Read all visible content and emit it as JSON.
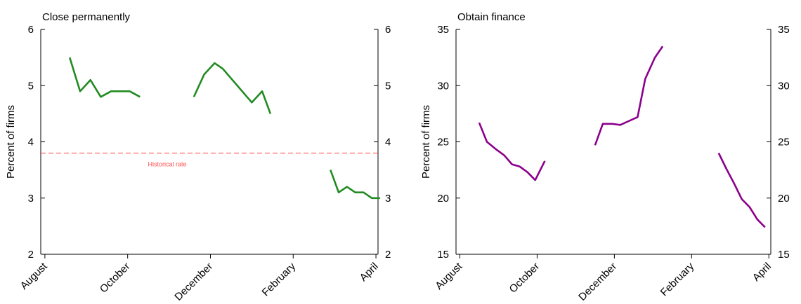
{
  "chart_data": [
    {
      "type": "line",
      "title": "Close permanently",
      "ylabel": "Percent of firms",
      "ylim": [
        2,
        6
      ],
      "yticks": [
        2,
        3,
        4,
        5,
        6
      ],
      "right_axis_mirrored": true,
      "x_range_months": [
        -0.1,
        8.05
      ],
      "x_ticks": [
        {
          "label": "August",
          "month": 0
        },
        {
          "label": "October",
          "month": 2
        },
        {
          "label": "December",
          "month": 4
        },
        {
          "label": "February",
          "month": 6
        },
        {
          "label": "April",
          "month": 8
        }
      ],
      "color": "#228B22",
      "segments": [
        [
          {
            "x": 0.6,
            "y": 5.5
          },
          {
            "x": 0.85,
            "y": 4.9
          },
          {
            "x": 1.1,
            "y": 5.1
          },
          {
            "x": 1.35,
            "y": 4.8
          },
          {
            "x": 1.6,
            "y": 4.9
          },
          {
            "x": 2.05,
            "y": 4.9
          },
          {
            "x": 2.3,
            "y": 4.8
          }
        ],
        [
          {
            "x": 3.6,
            "y": 4.8
          },
          {
            "x": 3.85,
            "y": 5.2
          },
          {
            "x": 4.1,
            "y": 5.4
          },
          {
            "x": 4.3,
            "y": 5.3
          },
          {
            "x": 5.0,
            "y": 4.7
          },
          {
            "x": 5.25,
            "y": 4.9
          },
          {
            "x": 5.45,
            "y": 4.5
          }
        ],
        [
          {
            "x": 6.9,
            "y": 3.5
          },
          {
            "x": 7.1,
            "y": 3.1
          },
          {
            "x": 7.3,
            "y": 3.2
          },
          {
            "x": 7.5,
            "y": 3.1
          },
          {
            "x": 7.7,
            "y": 3.1
          },
          {
            "x": 7.9,
            "y": 3.0
          },
          {
            "x": 8.1,
            "y": 3.0
          }
        ]
      ],
      "reference_line": {
        "y": 3.8,
        "label": "Historical rate",
        "color": "#ff5050"
      }
    },
    {
      "type": "line",
      "title": "Obtain finance",
      "ylabel": "Percent of firms",
      "ylim": [
        15,
        35
      ],
      "yticks": [
        15,
        20,
        25,
        30,
        35
      ],
      "right_axis_mirrored": true,
      "x_range_months": [
        -0.1,
        8.05
      ],
      "x_ticks": [
        {
          "label": "August",
          "month": 0
        },
        {
          "label": "October",
          "month": 2
        },
        {
          "label": "December",
          "month": 4
        },
        {
          "label": "February",
          "month": 6
        },
        {
          "label": "April",
          "month": 8
        }
      ],
      "color": "#8B008B",
      "segments": [
        [
          {
            "x": 0.5,
            "y": 26.7
          },
          {
            "x": 0.7,
            "y": 25.0
          },
          {
            "x": 0.95,
            "y": 24.3
          },
          {
            "x": 1.15,
            "y": 23.8
          },
          {
            "x": 1.35,
            "y": 23.0
          },
          {
            "x": 1.55,
            "y": 22.8
          },
          {
            "x": 1.75,
            "y": 22.3
          },
          {
            "x": 1.95,
            "y": 21.6
          },
          {
            "x": 2.2,
            "y": 23.3
          }
        ],
        [
          {
            "x": 3.5,
            "y": 24.7
          },
          {
            "x": 3.7,
            "y": 26.6
          },
          {
            "x": 3.95,
            "y": 26.6
          },
          {
            "x": 4.15,
            "y": 26.5
          },
          {
            "x": 4.6,
            "y": 27.2
          },
          {
            "x": 4.8,
            "y": 30.6
          },
          {
            "x": 5.05,
            "y": 32.5
          },
          {
            "x": 5.25,
            "y": 33.5
          }
        ],
        [
          {
            "x": 6.7,
            "y": 24.0
          },
          {
            "x": 6.9,
            "y": 22.6
          },
          {
            "x": 7.1,
            "y": 21.3
          },
          {
            "x": 7.3,
            "y": 19.9
          },
          {
            "x": 7.5,
            "y": 19.2
          },
          {
            "x": 7.7,
            "y": 18.1
          },
          {
            "x": 7.9,
            "y": 17.4
          }
        ]
      ]
    }
  ]
}
